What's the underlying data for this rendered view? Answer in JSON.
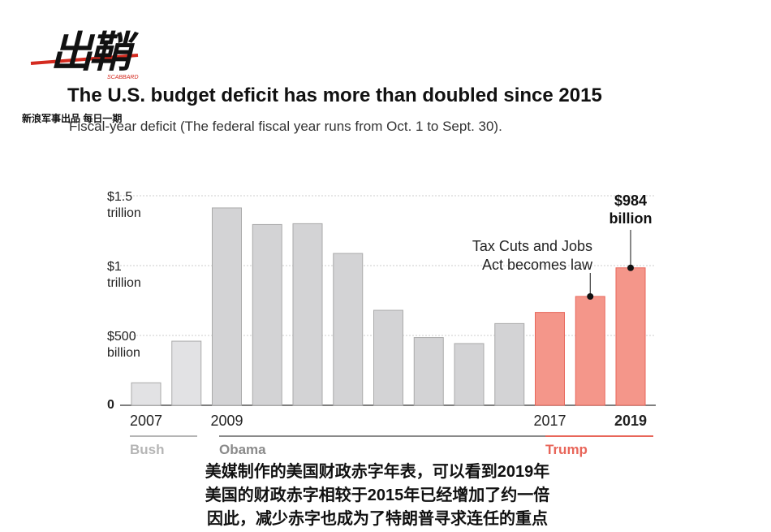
{
  "logo": "出鞘",
  "logo_sub": "SCABBARD",
  "brand": "新浪军事出品 每日一期",
  "chart_data": {
    "type": "bar",
    "title": "The U.S. budget deficit has more than doubled since 2015",
    "subtitle": "Fiscal-year deficit (The federal fiscal year runs from Oct. 1 to Sept. 30).",
    "categories": [
      "2007",
      null,
      "2009",
      null,
      null,
      null,
      null,
      null,
      null,
      null,
      "2017",
      null,
      "2019"
    ],
    "values": [
      161,
      459,
      1413,
      1294,
      1300,
      1087,
      680,
      485,
      442,
      585,
      665,
      779,
      984
    ],
    "value_labels": [
      null,
      null,
      null,
      null,
      null,
      null,
      null,
      null,
      null,
      null,
      null,
      null,
      "$984\nbillion"
    ],
    "colors": [
      "#e2e2e4",
      "#e2e2e4",
      "#d3d3d5",
      "#d3d3d5",
      "#d3d3d5",
      "#d3d3d5",
      "#d3d3d5",
      "#d3d3d5",
      "#d3d3d5",
      "#d3d3d5",
      "#f4968a",
      "#f4968a",
      "#f4968a"
    ],
    "ylim": [
      0,
      1500
    ],
    "yticks": [
      0,
      {
        "value": 500,
        "label": "$500\nbillion"
      },
      {
        "value": 1000,
        "label": "$1\ntrillion"
      },
      {
        "value": 1500,
        "label": "$1.5\ntrillion"
      }
    ],
    "grid": true,
    "annotation": "Tax Cuts and Jobs\nAct becomes law",
    "eras": [
      {
        "name": "Bush",
        "color": "#b5b5b5"
      },
      {
        "name": "Obama",
        "color": "#8a8a8a"
      },
      {
        "name": "Trump",
        "color": "#e8665a"
      }
    ]
  },
  "caption": [
    "美媒制作的美国财政赤字年表，可以看到2019年",
    "美国的财政赤字相较于2015年已经增加了约一倍",
    "因此，减少赤字也成为了特朗普寻求连任的重点"
  ]
}
